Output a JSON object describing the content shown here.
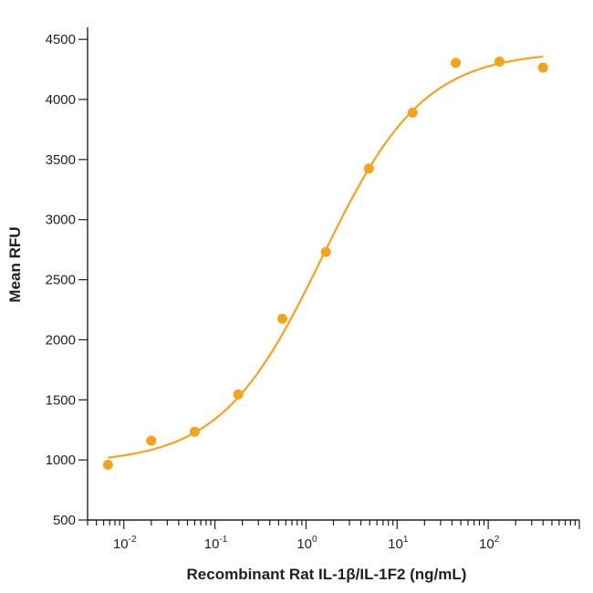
{
  "chart_data": {
    "type": "scatter",
    "title": "",
    "xlabel": "Recombinant Rat IL-1β/IL-1F2 (ng/mL)",
    "ylabel": "Mean RFU",
    "x_scale": "log",
    "xlim": [
      0.004,
      1000
    ],
    "ylim": [
      500,
      4600
    ],
    "y_ticks": [
      500,
      1000,
      1500,
      2000,
      2500,
      3000,
      3500,
      4000,
      4500
    ],
    "x_major_ticks": [
      {
        "value": 0.01,
        "label_base": "10",
        "label_exp": "-2"
      },
      {
        "value": 0.1,
        "label_base": "10",
        "label_exp": "-1"
      },
      {
        "value": 1,
        "label_base": "10",
        "label_exp": "0"
      },
      {
        "value": 10,
        "label_base": "10",
        "label_exp": "1"
      },
      {
        "value": 100,
        "label_base": "10",
        "label_exp": "2"
      }
    ],
    "grid": false,
    "color": "#f7a21b",
    "series": [
      {
        "x": [
          0.0067,
          0.02,
          0.06,
          0.18,
          0.55,
          1.65,
          4.9,
          14.8,
          44,
          133,
          400
        ],
        "y": [
          960,
          1160,
          1235,
          1545,
          2175,
          2730,
          3425,
          3890,
          4305,
          4315,
          4265
        ]
      }
    ],
    "fit": {
      "model": "4PL",
      "bottom": 970,
      "top": 4400,
      "ec50": 1.5,
      "hill": 0.78,
      "x_range": [
        0.0067,
        400
      ]
    }
  }
}
